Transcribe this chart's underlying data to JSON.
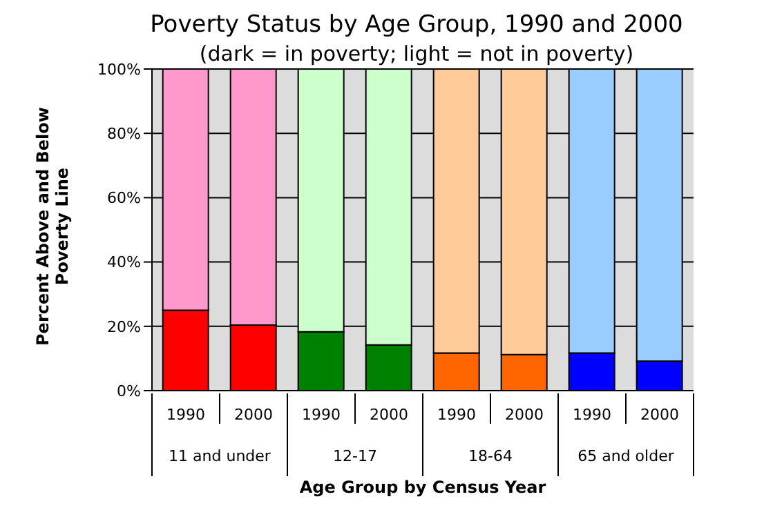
{
  "chart_data": {
    "type": "bar",
    "stacked": true,
    "title": "Poverty Status by Age Group, 1990 and 2000",
    "subtitle": "(dark = in poverty; light = not in poverty)",
    "xlabel": "Age Group by Census Year",
    "ylabel": "Percent Above and Below Poverty Line",
    "categories": [
      "1990",
      "2000",
      "1990",
      "2000",
      "1990",
      "2000",
      "1990",
      "2000"
    ],
    "annotations": [
      "11 and under",
      "12-17",
      "18-64",
      "65 and older"
    ],
    "series": [
      {
        "values": [
          25,
          20.4,
          18.3,
          14.2,
          11.7,
          11.2,
          11.7,
          9.2
        ],
        "colors": [
          "#ff0000",
          "#ff0000",
          "#008000",
          "#008000",
          "#ff6600",
          "#ff6600",
          "#0000ff",
          "#0000ff"
        ]
      },
      {
        "values": [
          75,
          79.6,
          81.7,
          85.8,
          88.3,
          88.8,
          88.3,
          90.8
        ],
        "colors": [
          "#ff99cc",
          "#ff99cc",
          "#ccffcc",
          "#ccffcc",
          "#ffcc99",
          "#ffcc99",
          "#99ccff",
          "#99ccff"
        ]
      }
    ],
    "ylim": [
      0,
      100
    ],
    "yticks": [
      {
        "value": 0,
        "label": "0%"
      },
      {
        "value": 20,
        "label": "20%"
      },
      {
        "value": 40,
        "label": "40%"
      },
      {
        "value": 60,
        "label": "60%"
      },
      {
        "value": 80,
        "label": "80%"
      },
      {
        "value": 100,
        "label": "100%"
      }
    ],
    "grid": "y"
  }
}
